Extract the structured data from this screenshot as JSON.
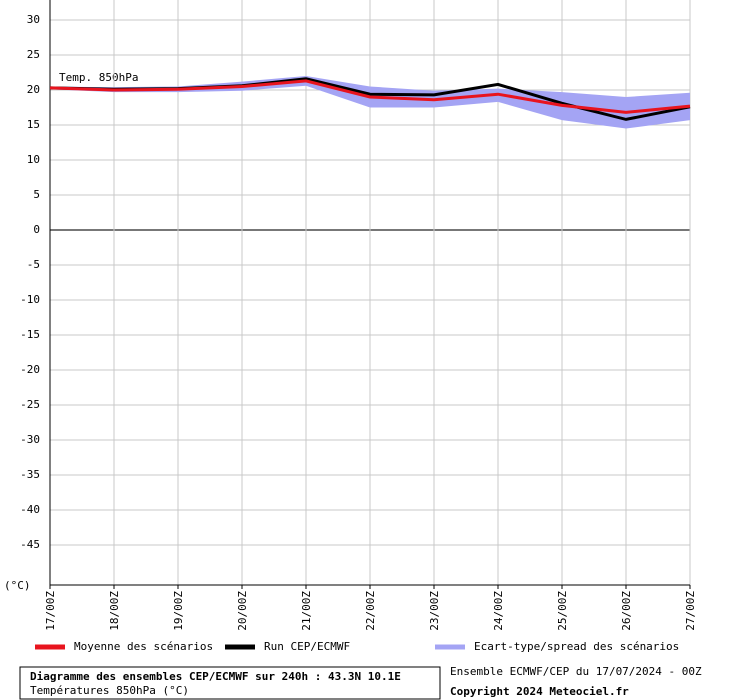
{
  "chart_data": {
    "type": "line",
    "annotation": "Temp. 850hPa",
    "y_unit": "(°C)",
    "categories": [
      "17/00Z",
      "18/00Z",
      "19/00Z",
      "20/00Z",
      "21/00Z",
      "22/00Z",
      "23/00Z",
      "24/00Z",
      "25/00Z",
      "26/00Z",
      "27/00Z"
    ],
    "series": [
      {
        "name": "Moyenne des scénarios",
        "color": "#e8141e",
        "values": [
          20.3,
          20.0,
          20.1,
          20.5,
          21.3,
          19.0,
          18.6,
          19.4,
          17.8,
          16.8,
          17.7
        ]
      },
      {
        "name": "Run CEP/ECMWF",
        "color": "#000000",
        "values": [
          20.3,
          20.1,
          20.2,
          20.6,
          21.6,
          19.4,
          19.3,
          20.8,
          18.1,
          15.8,
          17.6
        ]
      }
    ],
    "band": {
      "name": "Ecart-type/spread des scénarios",
      "color": "#a4a4f4",
      "upper": [
        20.5,
        20.4,
        20.5,
        21.2,
        22.0,
        20.5,
        19.9,
        20.2,
        19.7,
        19.0,
        19.6
      ],
      "lower": [
        20.1,
        19.7,
        19.7,
        19.9,
        20.6,
        17.5,
        17.5,
        18.3,
        15.7,
        14.5,
        15.7
      ]
    },
    "ylim": [
      -50,
      30
    ],
    "yticks": [
      30,
      25,
      20,
      15,
      10,
      5,
      0,
      -5,
      -10,
      -15,
      -20,
      -25,
      -30,
      -35,
      -40,
      -45
    ],
    "grid": true,
    "footer": {
      "title": "Diagramme des ensembles CEP/ECMWF sur 240h : 43.3N 10.1E",
      "subtitle": "Températures 850hPa (°C)",
      "run_info": "Ensemble ECMWF/CEP du 17/07/2024 - 00Z",
      "copyright": "Copyright 2024 Meteociel.fr"
    }
  }
}
